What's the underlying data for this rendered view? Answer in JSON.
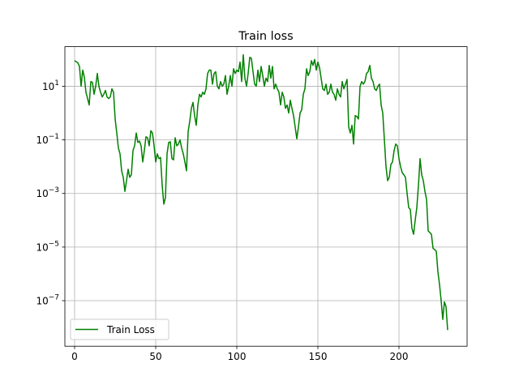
{
  "chart_data": {
    "type": "line",
    "title": "Train loss",
    "xlabel": "",
    "ylabel": "",
    "y_scale": "log",
    "xlim": [
      -6,
      242
    ],
    "ylim": [
      2e-09,
      300.0
    ],
    "x_ticks": [
      {
        "value": 0,
        "label": "0"
      },
      {
        "value": 50,
        "label": "50"
      },
      {
        "value": 100,
        "label": "100"
      },
      {
        "value": 150,
        "label": "150"
      },
      {
        "value": 200,
        "label": "200"
      }
    ],
    "y_ticks": [
      {
        "value": 10,
        "base": "10",
        "exp": ""
      },
      {
        "value": 0.1,
        "base": "10",
        "exp": "−1"
      },
      {
        "value": 0.001,
        "base": "10",
        "exp": "−3"
      },
      {
        "value": 1e-05,
        "base": "10",
        "exp": "−5"
      },
      {
        "value": 1e-07,
        "base": "10",
        "exp": "−7"
      }
    ],
    "grid": true,
    "legend_position": "lower-left",
    "series": [
      {
        "name": "Train Loss",
        "color": "#008000",
        "points": [
          [
            0,
            90
          ],
          [
            2,
            75
          ],
          [
            3,
            55
          ],
          [
            4,
            10
          ],
          [
            5,
            40
          ],
          [
            6,
            22
          ],
          [
            7,
            6
          ],
          [
            9,
            2
          ],
          [
            10,
            15
          ],
          [
            11,
            14
          ],
          [
            12,
            5
          ],
          [
            13,
            10
          ],
          [
            14,
            30
          ],
          [
            15,
            10
          ],
          [
            16,
            6
          ],
          [
            17,
            4
          ],
          [
            18,
            5
          ],
          [
            19,
            7
          ],
          [
            20,
            4
          ],
          [
            21,
            3.5
          ],
          [
            22,
            4
          ],
          [
            23,
            8
          ],
          [
            24,
            6
          ],
          [
            25,
            0.6
          ],
          [
            26,
            0.18
          ],
          [
            27,
            0.05
          ],
          [
            28,
            0.03
          ],
          [
            29,
            0.007
          ],
          [
            30,
            0.004
          ],
          [
            31,
            0.0012
          ],
          [
            32,
            0.003
          ],
          [
            33,
            0.008
          ],
          [
            34,
            0.004
          ],
          [
            35,
            0.005
          ],
          [
            36,
            0.04
          ],
          [
            37,
            0.06
          ],
          [
            38,
            0.18
          ],
          [
            39,
            0.08
          ],
          [
            40,
            0.09
          ],
          [
            41,
            0.06
          ],
          [
            42,
            0.015
          ],
          [
            43,
            0.04
          ],
          [
            44,
            0.13
          ],
          [
            45,
            0.12
          ],
          [
            46,
            0.06
          ],
          [
            47,
            0.22
          ],
          [
            48,
            0.18
          ],
          [
            49,
            0.06
          ],
          [
            50,
            0.015
          ],
          [
            51,
            0.03
          ],
          [
            52,
            0.02
          ],
          [
            53,
            0.022
          ],
          [
            54,
            0.002
          ],
          [
            55,
            0.0004
          ],
          [
            56,
            0.0007
          ],
          [
            57,
            0.03
          ],
          [
            58,
            0.08
          ],
          [
            59,
            0.085
          ],
          [
            60,
            0.02
          ],
          [
            61,
            0.018
          ],
          [
            62,
            0.12
          ],
          [
            63,
            0.06
          ],
          [
            64,
            0.07
          ],
          [
            65,
            0.1
          ],
          [
            66,
            0.05
          ],
          [
            67,
            0.03
          ],
          [
            68,
            0.015
          ],
          [
            69,
            0.007
          ],
          [
            70,
            0.2
          ],
          [
            71,
            0.5
          ],
          [
            72,
            1.5
          ],
          [
            73,
            2.5
          ],
          [
            74,
            0.8
          ],
          [
            75,
            0.35
          ],
          [
            76,
            2
          ],
          [
            77,
            5
          ],
          [
            78,
            4
          ],
          [
            79,
            6
          ],
          [
            80,
            5
          ],
          [
            81,
            8
          ],
          [
            82,
            30
          ],
          [
            83,
            40
          ],
          [
            84,
            40
          ],
          [
            85,
            12
          ],
          [
            86,
            30
          ],
          [
            87,
            35
          ],
          [
            88,
            10
          ],
          [
            89,
            8
          ],
          [
            90,
            15
          ],
          [
            91,
            10
          ],
          [
            92,
            12
          ],
          [
            93,
            25
          ],
          [
            94,
            5
          ],
          [
            95,
            10
          ],
          [
            96,
            25
          ],
          [
            97,
            10
          ],
          [
            98,
            45
          ],
          [
            99,
            30
          ],
          [
            100,
            40
          ],
          [
            101,
            35
          ],
          [
            102,
            80
          ],
          [
            103,
            15
          ],
          [
            104,
            150
          ],
          [
            105,
            20
          ],
          [
            106,
            10
          ],
          [
            107,
            30
          ],
          [
            108,
            120
          ],
          [
            109,
            110
          ],
          [
            110,
            35
          ],
          [
            111,
            12
          ],
          [
            112,
            10
          ],
          [
            113,
            40
          ],
          [
            114,
            15
          ],
          [
            115,
            55
          ],
          [
            116,
            25
          ],
          [
            117,
            10
          ],
          [
            118,
            20
          ],
          [
            119,
            15
          ],
          [
            120,
            60
          ],
          [
            121,
            20
          ],
          [
            122,
            55
          ],
          [
            123,
            8
          ],
          [
            124,
            12
          ],
          [
            125,
            8
          ],
          [
            126,
            6
          ],
          [
            127,
            2
          ],
          [
            128,
            6
          ],
          [
            129,
            4
          ],
          [
            130,
            1.5
          ],
          [
            131,
            2
          ],
          [
            132,
            1
          ],
          [
            133,
            3
          ],
          [
            134,
            1.5
          ],
          [
            135,
            0.8
          ],
          [
            136,
            0.3
          ],
          [
            137,
            0.11
          ],
          [
            138,
            0.3
          ],
          [
            139,
            1
          ],
          [
            140,
            1.3
          ],
          [
            141,
            5
          ],
          [
            142,
            8
          ],
          [
            143,
            45
          ],
          [
            144,
            25
          ],
          [
            145,
            35
          ],
          [
            146,
            90
          ],
          [
            147,
            60
          ],
          [
            148,
            100
          ],
          [
            149,
            40
          ],
          [
            150,
            80
          ],
          [
            151,
            50
          ],
          [
            152,
            20
          ],
          [
            153,
            8
          ],
          [
            154,
            7
          ],
          [
            155,
            12
          ],
          [
            156,
            5
          ],
          [
            157,
            6
          ],
          [
            158,
            12
          ],
          [
            159,
            6
          ],
          [
            160,
            5
          ],
          [
            161,
            3
          ],
          [
            162,
            8
          ],
          [
            163,
            5
          ],
          [
            164,
            4
          ],
          [
            165,
            15
          ],
          [
            166,
            8
          ],
          [
            167,
            12
          ],
          [
            168,
            18
          ],
          [
            169,
            0.3
          ],
          [
            170,
            0.18
          ],
          [
            171,
            0.35
          ],
          [
            172,
            0.07
          ],
          [
            173,
            0.8
          ],
          [
            174,
            0.75
          ],
          [
            175,
            0.6
          ],
          [
            176,
            10
          ],
          [
            177,
            15
          ],
          [
            178,
            12
          ],
          [
            179,
            15
          ],
          [
            180,
            30
          ],
          [
            181,
            35
          ],
          [
            182,
            60
          ],
          [
            183,
            20
          ],
          [
            184,
            15
          ],
          [
            185,
            8
          ],
          [
            186,
            7
          ],
          [
            187,
            10
          ],
          [
            188,
            12
          ],
          [
            189,
            2
          ],
          [
            190,
            1
          ],
          [
            191,
            0.1
          ],
          [
            192,
            0.01
          ],
          [
            193,
            0.003
          ],
          [
            194,
            0.004
          ],
          [
            195,
            0.012
          ],
          [
            196,
            0.015
          ],
          [
            197,
            0.04
          ],
          [
            198,
            0.07
          ],
          [
            199,
            0.06
          ],
          [
            200,
            0.02
          ],
          [
            201,
            0.01
          ],
          [
            202,
            0.006
          ],
          [
            203,
            0.005
          ],
          [
            204,
            0.004
          ],
          [
            205,
            0.001
          ],
          [
            206,
            0.0003
          ],
          [
            207,
            0.00025
          ],
          [
            208,
            5e-05
          ],
          [
            209,
            3e-05
          ],
          [
            210,
            0.0001
          ],
          [
            211,
            0.0003
          ],
          [
            212,
            0.002
          ],
          [
            213,
            0.02
          ],
          [
            214,
            0.005
          ],
          [
            215,
            0.003
          ],
          [
            216,
            0.0012
          ],
          [
            217,
            0.0006
          ],
          [
            218,
            4e-05
          ],
          [
            219,
            3.5e-05
          ],
          [
            220,
            3e-05
          ],
          [
            221,
            9e-06
          ],
          [
            222,
            8e-06
          ],
          [
            223,
            7e-06
          ],
          [
            224,
            1.2e-06
          ],
          [
            225,
            4e-07
          ],
          [
            226,
            1e-07
          ],
          [
            227,
            2e-08
          ],
          [
            228,
            9e-08
          ],
          [
            229,
            6e-08
          ],
          [
            230,
            8e-09
          ]
        ]
      }
    ]
  }
}
